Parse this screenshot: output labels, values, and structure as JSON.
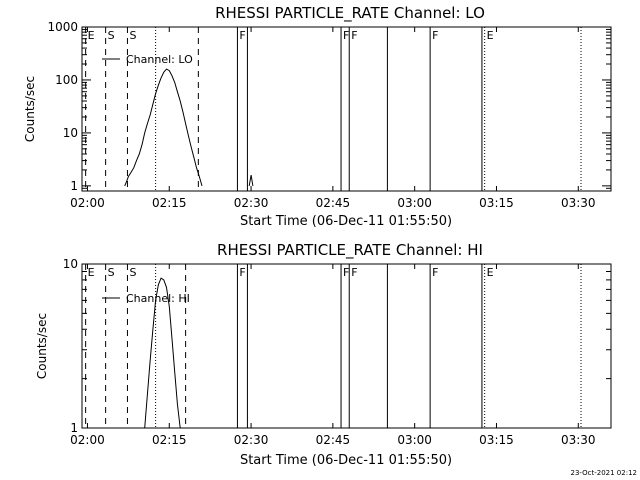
{
  "timestamp": "23-Oct-2021 02:12",
  "chart_data": [
    {
      "type": "line",
      "title": "RHESSI PARTICLE_RATE Channel: LO",
      "xlabel": "Start Time (06-Dec-11 01:55:50)",
      "ylabel": "Counts/sec",
      "y_scale": "log",
      "xlim": [
        "01:59:00",
        "03:36:00"
      ],
      "ylim": [
        0.8,
        1000
      ],
      "x_ticks": [
        "02:00",
        "02:15",
        "02:30",
        "02:45",
        "03:00",
        "03:15",
        "03:30"
      ],
      "y_ticks": [
        "1",
        "10",
        "100",
        "1000"
      ],
      "legend": {
        "placement": "top-left",
        "label": "Channel: LO"
      },
      "series": [
        {
          "name": "Channel: LO",
          "segments": [
            {
              "x": [
                "02:06:50",
                "02:07:10",
                "02:07:30",
                "02:08:00",
                "02:08:30",
                "02:09:00",
                "02:09:30",
                "02:10:00",
                "02:10:30",
                "02:11:00",
                "02:11:30",
                "02:12:00",
                "02:12:30",
                "02:13:00",
                "02:13:30",
                "02:14:00",
                "02:14:30",
                "02:15:00",
                "02:15:30",
                "02:16:00",
                "02:16:30",
                "02:17:00",
                "02:17:30",
                "02:18:00",
                "02:18:30",
                "02:19:00",
                "02:19:30",
                "02:20:00",
                "02:20:30",
                "02:21:00"
              ],
              "y": [
                1,
                1.2,
                1.5,
                1.8,
                2.2,
                3,
                4,
                6,
                10,
                15,
                22,
                35,
                55,
                80,
                110,
                140,
                160,
                150,
                120,
                90,
                60,
                40,
                25,
                15,
                9,
                5.5,
                3.5,
                2.2,
                1.5,
                1
              ]
            },
            {
              "x": [
                "02:29:40",
                "02:30:00",
                "02:30:20"
              ],
              "y": [
                1,
                1.6,
                1
              ]
            }
          ]
        }
      ],
      "event_flags": [
        {
          "label": "E",
          "time": "01:59:40",
          "style": "dashed"
        },
        {
          "label": "S",
          "time": "02:03:20",
          "style": "dashed"
        },
        {
          "label": "S",
          "time": "02:07:20",
          "style": "dashed"
        },
        {
          "label": "",
          "time": "02:12:30",
          "style": "dotted"
        },
        {
          "label": "",
          "time": "02:20:20",
          "style": "dashed"
        },
        {
          "label": "F",
          "time": "02:27:30",
          "style": "solid"
        },
        {
          "label": "",
          "time": "02:29:20",
          "style": "solid"
        },
        {
          "label": "F",
          "time": "02:46:30",
          "style": "solid"
        },
        {
          "label": "F",
          "time": "02:48:00",
          "style": "solid"
        },
        {
          "label": "",
          "time": "02:55:00",
          "style": "solid"
        },
        {
          "label": "F",
          "time": "03:02:50",
          "style": "solid"
        },
        {
          "label": "",
          "time": "03:12:20",
          "style": "solid"
        },
        {
          "label": "E",
          "time": "03:12:50",
          "style": "dotted"
        },
        {
          "label": "",
          "time": "03:30:30",
          "style": "dotted"
        }
      ]
    },
    {
      "type": "line",
      "title": "RHESSI PARTICLE_RATE Channel: HI",
      "xlabel": "Start Time (06-Dec-11 01:55:50)",
      "ylabel": "Counts/sec",
      "y_scale": "log",
      "xlim": [
        "01:59:00",
        "03:36:00"
      ],
      "ylim": [
        1,
        10
      ],
      "x_ticks": [
        "02:00",
        "02:15",
        "02:30",
        "02:45",
        "03:00",
        "03:15",
        "03:30"
      ],
      "y_ticks": [
        "1",
        "10"
      ],
      "legend": {
        "placement": "top-left",
        "label": "Channel: HI"
      },
      "series": [
        {
          "name": "Channel: HI",
          "segments": [
            {
              "x": [
                "02:10:30",
                "02:11:00",
                "02:11:30",
                "02:12:00",
                "02:12:30",
                "02:13:00",
                "02:13:30",
                "02:14:00",
                "02:14:30",
                "02:15:00",
                "02:15:30",
                "02:16:00",
                "02:16:30",
                "02:17:00"
              ],
              "y": [
                1,
                1.6,
                2.6,
                4,
                6,
                7.5,
                8.2,
                8,
                7.2,
                5.5,
                3.5,
                2.2,
                1.4,
                1
              ]
            }
          ]
        }
      ],
      "event_flags": [
        {
          "label": "E",
          "time": "01:59:40",
          "style": "dashed"
        },
        {
          "label": "S",
          "time": "02:03:20",
          "style": "dashed"
        },
        {
          "label": "S",
          "time": "02:07:20",
          "style": "dashed"
        },
        {
          "label": "",
          "time": "02:12:30",
          "style": "dotted"
        },
        {
          "label": "",
          "time": "02:18:00",
          "style": "dashed"
        },
        {
          "label": "F",
          "time": "02:27:30",
          "style": "solid"
        },
        {
          "label": "",
          "time": "02:29:20",
          "style": "solid"
        },
        {
          "label": "F",
          "time": "02:46:30",
          "style": "solid"
        },
        {
          "label": "F",
          "time": "02:48:00",
          "style": "solid"
        },
        {
          "label": "",
          "time": "02:55:00",
          "style": "solid"
        },
        {
          "label": "F",
          "time": "03:02:50",
          "style": "solid"
        },
        {
          "label": "",
          "time": "03:12:20",
          "style": "solid"
        },
        {
          "label": "E",
          "time": "03:12:50",
          "style": "dotted"
        },
        {
          "label": "",
          "time": "03:30:30",
          "style": "dotted"
        }
      ]
    }
  ]
}
